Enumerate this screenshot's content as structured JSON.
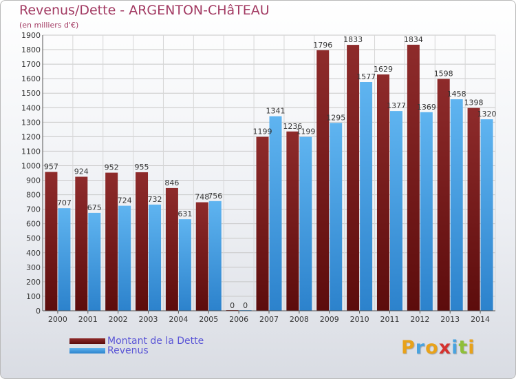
{
  "header": {
    "title": "Revenus/Dette - ARGENTON-CHâTEAU",
    "subtitle": "(en milliers d'€)"
  },
  "legend": {
    "debt_label": "Montant de la Dette",
    "revenue_label": "Revenus"
  },
  "logo": {
    "letters": [
      "P",
      "r",
      "o",
      "x",
      "i",
      "t",
      "i"
    ],
    "colors": [
      "#e8a21a",
      "#4aa3df",
      "#e8a21a",
      "#d5322f",
      "#4aa3df",
      "#8fbf3a",
      "#e8a21a"
    ]
  },
  "colors": {
    "debt": "#7a1f1f",
    "revenue": "#4da3e6"
  },
  "chart_data": {
    "type": "bar",
    "title": "Revenus/Dette - ARGENTON-CHâTEAU",
    "subtitle": "(en milliers d'€)",
    "categories": [
      "2000",
      "2001",
      "2002",
      "2003",
      "2004",
      "2005",
      "2006",
      "2007",
      "2008",
      "2009",
      "2010",
      "2011",
      "2012",
      "2013",
      "2014"
    ],
    "series": [
      {
        "name": "Montant de la Dette",
        "values": [
          957,
          924,
          952,
          955,
          846,
          748,
          0,
          1199,
          1236,
          1796,
          1833,
          1629,
          1834,
          1598,
          1398
        ]
      },
      {
        "name": "Revenus",
        "values": [
          707,
          675,
          724,
          732,
          631,
          756,
          0,
          1341,
          1199,
          1295,
          1577,
          1377,
          1369,
          1458,
          1320
        ]
      }
    ],
    "yticks": [
      0,
      100,
      200,
      300,
      400,
      500,
      600,
      700,
      800,
      900,
      1000,
      1100,
      1200,
      1300,
      1400,
      1500,
      1600,
      1700,
      1800,
      1900
    ],
    "ylim": [
      0,
      1900
    ],
    "grid": true,
    "legend_position": "bottom-left"
  }
}
